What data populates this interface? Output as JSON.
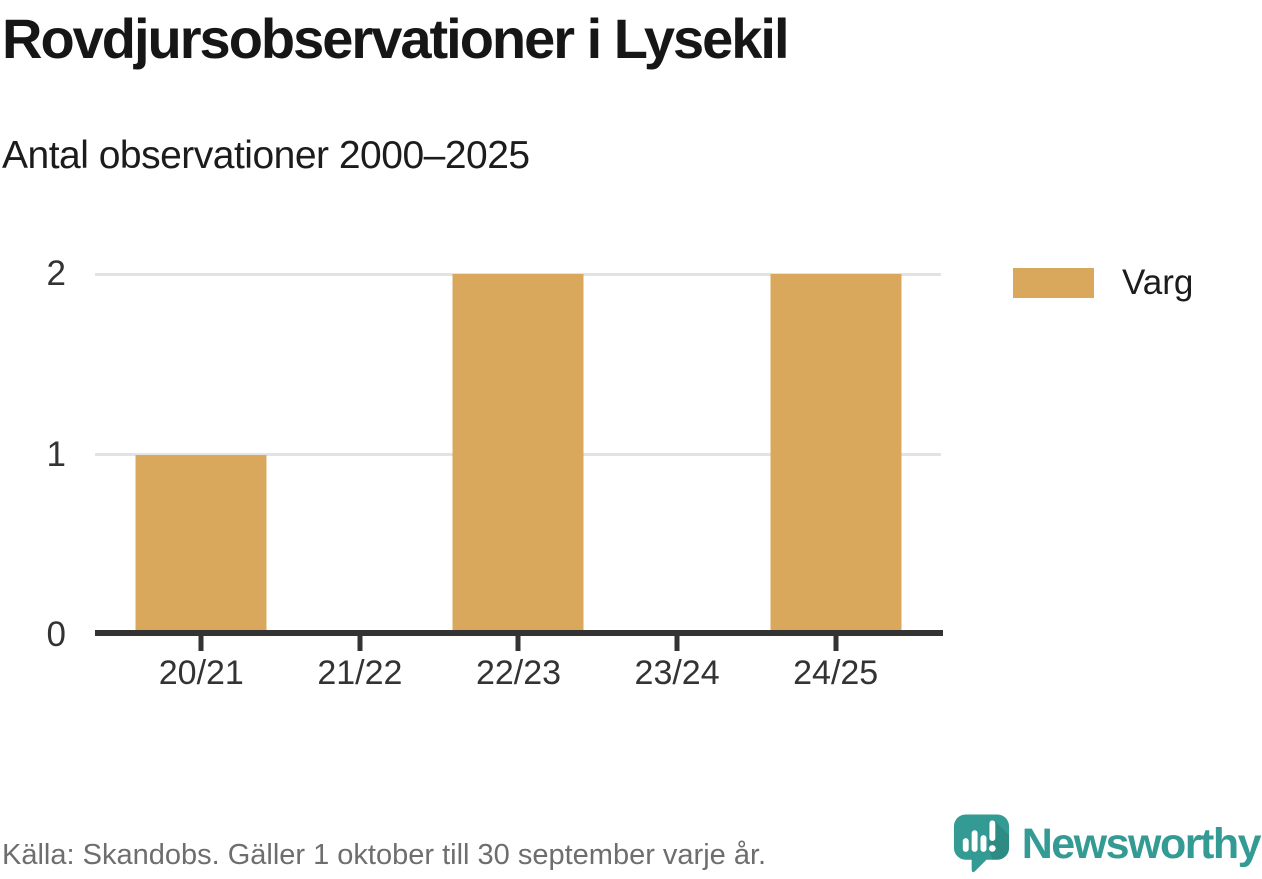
{
  "header": {
    "title": "Rovdjursobservationer i Lysekil",
    "subtitle": "Antal observationer 2000–2025"
  },
  "chart_data": {
    "type": "bar",
    "categories": [
      "20/21",
      "21/22",
      "22/23",
      "23/24",
      "24/25"
    ],
    "series": [
      {
        "name": "Varg",
        "values": [
          1,
          0,
          2,
          0,
          2
        ]
      }
    ],
    "title": "Rovdjursobservationer i Lysekil",
    "subtitle": "Antal observationer 2000–2025",
    "xlabel": "",
    "ylabel": "",
    "ylim": [
      0,
      2
    ],
    "yticks": [
      0,
      1,
      2
    ],
    "grid": "horizontal",
    "legend_position": "right"
  },
  "legend": {
    "items": [
      {
        "label": "Varg",
        "color": "#d9a85c"
      }
    ]
  },
  "footer": {
    "source_text": "Källa: Skandobs. Gäller 1 oktober till 30 september varje år.",
    "brand_name": "Newsworthy"
  },
  "colors": {
    "bar": "#d9a85c",
    "axis": "#333333",
    "gridline": "#e3e3e3",
    "brand_teal": "#349b94",
    "brand_teal_dark": "#2a8780",
    "footer_text": "#6e6e6e"
  }
}
